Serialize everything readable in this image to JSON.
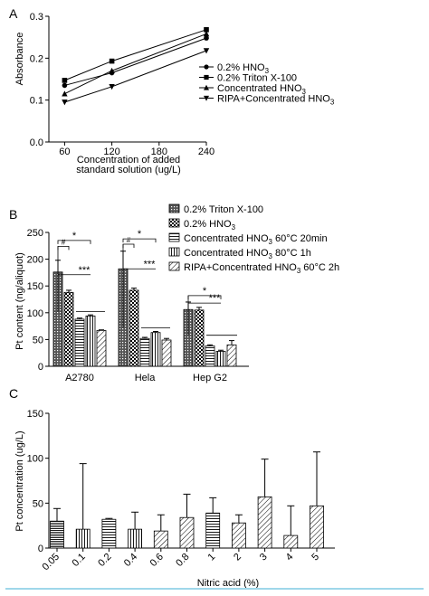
{
  "chart_data": [
    {
      "panel_label": "A",
      "type": "line",
      "xlabel": [
        "Concentration of added",
        "standard solution (ug/L)"
      ],
      "ylabel": "Absorbance",
      "x_ticks": [
        "60",
        "120",
        "180",
        "240"
      ],
      "y_ticks": [
        "0.0",
        "0.1",
        "0.2",
        "0.3"
      ],
      "xlim": [
        40,
        240
      ],
      "ylim": [
        0.0,
        0.3
      ],
      "legend_position": "right",
      "series": [
        {
          "name": "0.2% HNO3",
          "legend": {
            "base": "0.2% HNO",
            "sub": "3"
          },
          "marker": "circle",
          "x": [
            60,
            120,
            240
          ],
          "y": [
            0.135,
            0.165,
            0.248
          ]
        },
        {
          "name": "0.2% Triton X-100",
          "legend": {
            "base": "0.2% Triton X-100",
            "sub": ""
          },
          "marker": "square",
          "x": [
            60,
            120,
            240
          ],
          "y": [
            0.147,
            0.193,
            0.268
          ]
        },
        {
          "name": "Concentrated HNO3",
          "legend": {
            "base": "Concentrated HNO",
            "sub": "3"
          },
          "marker": "triangle-up",
          "x": [
            60,
            120,
            240
          ],
          "y": [
            0.115,
            0.17,
            0.258
          ]
        },
        {
          "name": "RIPA+Concentrated HNO3",
          "legend": {
            "base": "RIPA+Concentrated HNO",
            "sub": "3"
          },
          "marker": "triangle-down",
          "x": [
            60,
            120,
            240
          ],
          "y": [
            0.095,
            0.132,
            0.218
          ]
        }
      ]
    },
    {
      "panel_label": "B",
      "type": "bar",
      "ylabel": "Pt content (ng/aliquot)",
      "categories": [
        "A2780",
        "Hela",
        "Hep G2"
      ],
      "y_ticks": [
        "0",
        "50",
        "100",
        "150",
        "200",
        "250"
      ],
      "ylim": [
        0,
        250
      ],
      "legend_position": "top",
      "series": [
        {
          "name": "0.2% Triton X-100",
          "legend": {
            "base": "0.2% Triton X-100",
            "sub": "",
            "tail": ""
          },
          "pattern": "dark-dots",
          "values": [
            176,
            182,
            106
          ],
          "errors": [
            22,
            33,
            14
          ]
        },
        {
          "name": "0.2% HNO3",
          "legend": {
            "base": "0.2% HNO",
            "sub": "3",
            "tail": ""
          },
          "pattern": "checker",
          "values": [
            138,
            142,
            105
          ],
          "errors": [
            4,
            4,
            5
          ]
        },
        {
          "name": "Concentrated HNO3 60°C 20min",
          "legend": {
            "base": "Concentrated HNO",
            "sub": "3",
            "tail": " 60°C 20min"
          },
          "pattern": "horizontal-lines",
          "values": [
            88,
            52,
            38
          ],
          "errors": [
            2,
            2,
            2
          ]
        },
        {
          "name": "Concentrated HNO3 80°C 1h",
          "legend": {
            "base": "Concentrated HNO",
            "sub": "3",
            "tail": " 80°C 1h"
          },
          "pattern": "vertical-lines",
          "values": [
            94,
            63,
            28
          ],
          "errors": [
            2,
            2,
            2
          ]
        },
        {
          "name": "RIPA+Concentrated HNO3 60°C 2h",
          "legend": {
            "base": "RIPA+Concentrated HNO",
            "sub": "3",
            "tail": " 60°C 2h"
          },
          "pattern": "diagonal-lines",
          "values": [
            67,
            49,
            40
          ],
          "errors": [
            1,
            3,
            8
          ]
        }
      ],
      "annotations": [
        "#",
        "*",
        "***"
      ]
    },
    {
      "panel_label": "C",
      "type": "bar",
      "ylabel": "Pt concentration (ug/L)",
      "xlabel": "Nitric acid (%)",
      "categories": [
        "0.05",
        "0.1",
        "0.2",
        "0.4",
        "0.6",
        "0.8",
        "1",
        "2",
        "3",
        "4",
        "5"
      ],
      "y_ticks": [
        "0",
        "50",
        "100",
        "150"
      ],
      "ylim": [
        0,
        150
      ],
      "values": [
        30,
        21,
        32,
        21,
        19,
        34,
        39,
        28,
        57,
        14,
        47
      ],
      "errors": [
        14,
        73,
        1,
        19,
        18,
        26,
        17,
        9,
        42,
        33,
        60
      ],
      "patterns": [
        "dense-horizontal",
        "vertical-lines",
        "horizontal-lines",
        "vertical-lines",
        "diagonal-lines",
        "diagonal-lines",
        "horizontal-lines",
        "diagonal-lines",
        "diagonal-lines",
        "diagonal-lines",
        "diagonal-lines"
      ]
    }
  ]
}
